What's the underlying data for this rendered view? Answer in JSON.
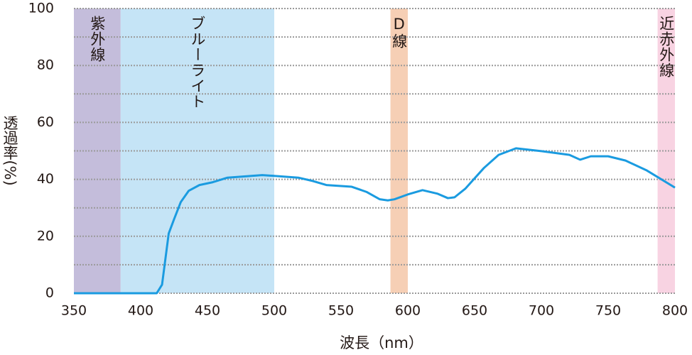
{
  "chart_data": {
    "type": "line",
    "xlabel": "波長（nm）",
    "ylabel": "透過率(%)",
    "xlim": [
      350,
      800
    ],
    "xticks": [
      350,
      400,
      450,
      500,
      550,
      600,
      650,
      700,
      750,
      800
    ],
    "ylim": [
      0,
      100
    ],
    "yticks": [
      0,
      20,
      40,
      60,
      80,
      100
    ],
    "ygrid": [
      0,
      10,
      20,
      30,
      40,
      50,
      60,
      70,
      80,
      90,
      100
    ],
    "bands": [
      {
        "label": "紫外線",
        "range": [
          350,
          385
        ],
        "color": "#c4bddb"
      },
      {
        "label": "ブルーライト",
        "range": [
          385,
          500
        ],
        "color": "#c5e4f6"
      },
      {
        "label": "D線",
        "range": [
          587,
          600
        ],
        "color": "#f6cfb5"
      },
      {
        "label": "近赤外線",
        "range": [
          787,
          800
        ],
        "color": "#f8d3e2"
      }
    ],
    "series": [
      {
        "color": "#1a9be0",
        "x": [
          350,
          410,
          412,
          416,
          421,
          425,
          430,
          436,
          444,
          454,
          465,
          491,
          518,
          529,
          539,
          558,
          569,
          579,
          585,
          590,
          600,
          611,
          622,
          630,
          635,
          643,
          657,
          668,
          681,
          700,
          721,
          729,
          737,
          750,
          763,
          779,
          800
        ],
        "values": [
          0,
          0,
          0,
          3,
          21,
          26,
          32,
          36,
          38,
          39,
          40.6,
          41.5,
          40.6,
          39.4,
          38,
          37.4,
          35.6,
          33,
          32.6,
          33,
          34.7,
          36.2,
          35,
          33.4,
          33.7,
          36.7,
          44,
          48.6,
          50.9,
          49.9,
          48.6,
          46.9,
          48.1,
          48.1,
          46.6,
          43.1,
          37.1
        ]
      }
    ]
  }
}
